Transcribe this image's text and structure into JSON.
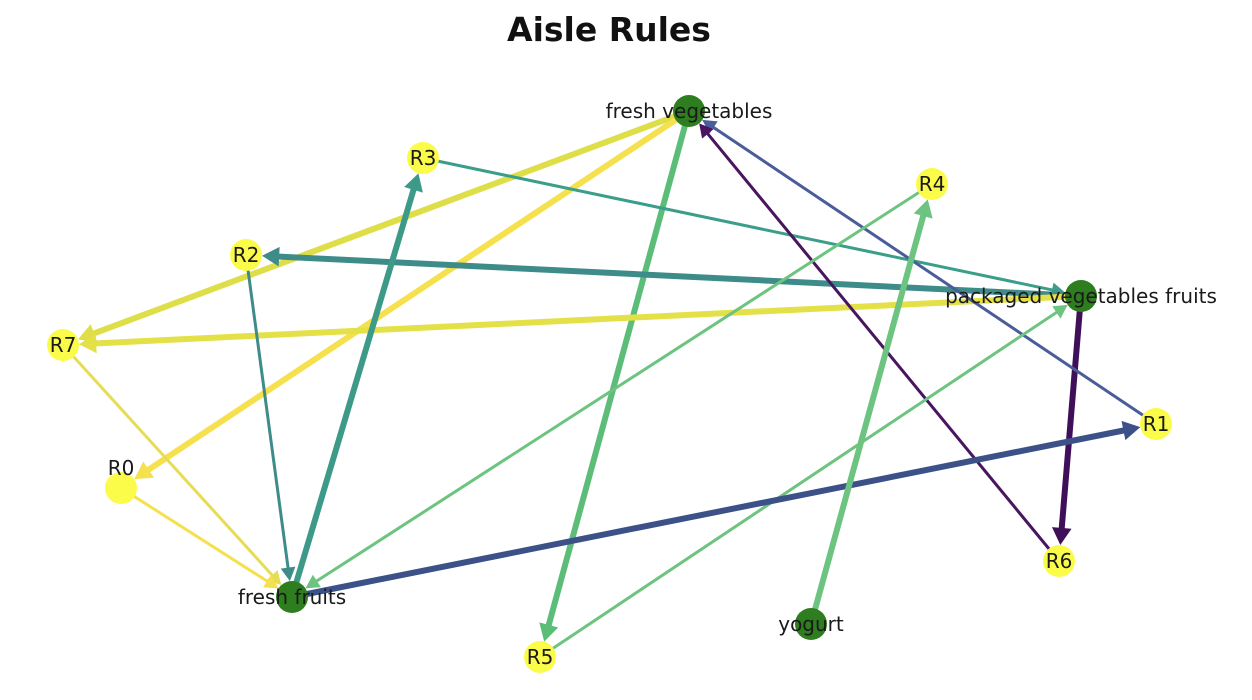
{
  "diagram": {
    "title": "Aisle Rules",
    "colors": {
      "item_node": "#2e7d1f",
      "rule_node": "#fbfb4a"
    },
    "nodes": [
      {
        "id": "fresh_vegetables",
        "label": "fresh vegetables",
        "kind": "item"
      },
      {
        "id": "packaged_vegetables_fruits",
        "label": "packaged vegetables fruits",
        "kind": "item"
      },
      {
        "id": "fresh_fruits",
        "label": "fresh fruits",
        "kind": "item"
      },
      {
        "id": "yogurt",
        "label": "yogurt",
        "kind": "item"
      },
      {
        "id": "R0",
        "label": "R0",
        "kind": "rule"
      },
      {
        "id": "R1",
        "label": "R1",
        "kind": "rule"
      },
      {
        "id": "R2",
        "label": "R2",
        "kind": "rule"
      },
      {
        "id": "R3",
        "label": "R3",
        "kind": "rule"
      },
      {
        "id": "R4",
        "label": "R4",
        "kind": "rule"
      },
      {
        "id": "R5",
        "label": "R5",
        "kind": "rule"
      },
      {
        "id": "R6",
        "label": "R6",
        "kind": "rule"
      },
      {
        "id": "R7",
        "label": "R7",
        "kind": "rule"
      }
    ],
    "edges": [
      {
        "from": "fresh_vegetables",
        "to": "R7",
        "color": "#dede48",
        "weight": "thick"
      },
      {
        "from": "fresh_vegetables",
        "to": "R0",
        "color": "#f5e04e",
        "weight": "thick"
      },
      {
        "from": "fresh_vegetables",
        "to": "R5",
        "color": "#5cbd78",
        "weight": "thick"
      },
      {
        "from": "R3",
        "to": "packaged_vegetables_fruits",
        "color": "#3a9e8a",
        "weight": "thin"
      },
      {
        "from": "packaged_vegetables_fruits",
        "to": "R2",
        "color": "#3e8c8a",
        "weight": "thick"
      },
      {
        "from": "packaged_vegetables_fruits",
        "to": "R7",
        "color": "#e3e048",
        "weight": "thick"
      },
      {
        "from": "packaged_vegetables_fruits",
        "to": "R6",
        "color": "#3f0f5a",
        "weight": "thick"
      },
      {
        "from": "R1",
        "to": "fresh_vegetables",
        "color": "#4a5d9a",
        "weight": "thin"
      },
      {
        "from": "R6",
        "to": "fresh_vegetables",
        "color": "#48155e",
        "weight": "thin"
      },
      {
        "from": "R4",
        "to": "fresh_fruits",
        "color": "#6cc480",
        "weight": "thin"
      },
      {
        "from": "R5",
        "to": "packaged_vegetables_fruits",
        "color": "#6cc480",
        "weight": "thin"
      },
      {
        "from": "R2",
        "to": "fresh_fruits",
        "color": "#3e8c8a",
        "weight": "thin"
      },
      {
        "from": "R7",
        "to": "fresh_fruits",
        "color": "#e6dc55",
        "weight": "thin"
      },
      {
        "from": "R0",
        "to": "fresh_fruits",
        "color": "#f5e04e",
        "weight": "thin"
      },
      {
        "from": "fresh_fruits",
        "to": "R3",
        "color": "#3e9a88",
        "weight": "thick"
      },
      {
        "from": "fresh_fruits",
        "to": "R1",
        "color": "#3b5188",
        "weight": "thick"
      },
      {
        "from": "yogurt",
        "to": "R4",
        "color": "#6cc480",
        "weight": "thick"
      }
    ]
  }
}
